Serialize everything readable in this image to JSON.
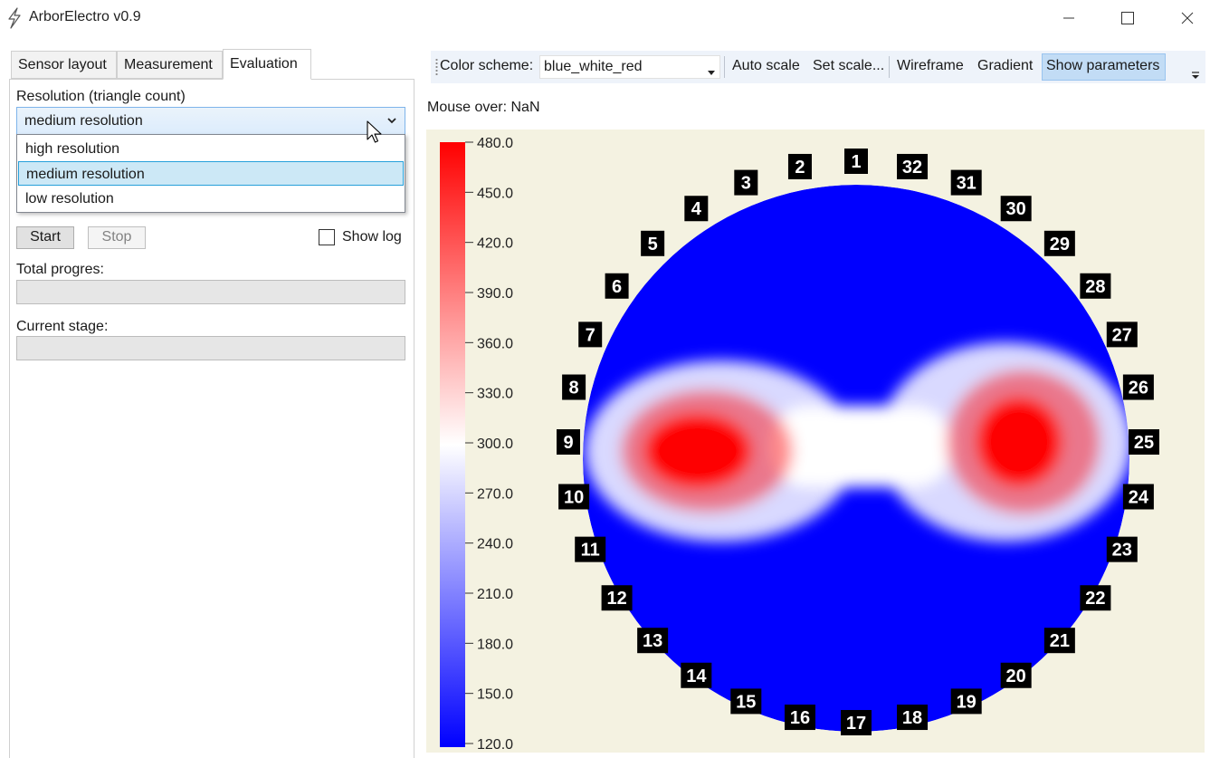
{
  "window": {
    "title": "ArborElectro v0.9",
    "icon": "lightning-icon",
    "controls": [
      "minimize-icon",
      "maximize-icon",
      "close-icon"
    ]
  },
  "tabs": [
    {
      "label": "Sensor layout",
      "active": false
    },
    {
      "label": "Measurement",
      "active": false
    },
    {
      "label": "Evaluation",
      "active": true
    }
  ],
  "evaluation": {
    "resolution_label": "Resolution (triangle count)",
    "resolution_value": "medium resolution",
    "resolution_options": [
      {
        "label": "high resolution",
        "selected": false
      },
      {
        "label": "medium resolution",
        "selected": true
      },
      {
        "label": "low resolution",
        "selected": false
      }
    ],
    "start_label": "Start",
    "stop_label": "Stop",
    "show_log_label": "Show log",
    "show_log_checked": false,
    "total_progress_label": "Total progres:",
    "total_progress_value": 0,
    "current_stage_label": "Current stage:",
    "current_stage_value": 0
  },
  "toolbar": {
    "color_scheme_label": "Color scheme:",
    "color_scheme_value": "blue_white_red",
    "auto_scale_label": "Auto scale",
    "set_scale_label": "Set scale...",
    "wireframe_label": "Wireframe",
    "gradient_label": "Gradient",
    "show_parameters_label": "Show parameters",
    "show_parameters_active": true
  },
  "mouse_over": "Mouse over: NaN",
  "colors": {
    "scale_low": "#0000ff",
    "scale_mid": "#ffffff",
    "scale_high": "#ff0000",
    "plot_background": "#f4f2e1",
    "marker_background": "#000000",
    "marker_text": "#ffffff",
    "toolbar_active": "#c2dcf5"
  },
  "chart_data": {
    "type": "heatmap",
    "colorbar": {
      "min": 120.0,
      "max": 480.0,
      "ticks": [
        "480.0",
        "450.0",
        "420.0",
        "390.0",
        "360.0",
        "330.0",
        "300.0",
        "270.0",
        "240.0",
        "210.0",
        "180.0",
        "150.0",
        "120.0"
      ]
    },
    "sensor_labels": [
      "1",
      "2",
      "3",
      "4",
      "5",
      "6",
      "7",
      "8",
      "9",
      "10",
      "11",
      "12",
      "13",
      "14",
      "15",
      "16",
      "17",
      "18",
      "19",
      "20",
      "21",
      "22",
      "23",
      "24",
      "25",
      "26",
      "27",
      "28",
      "29",
      "30",
      "31",
      "32"
    ]
  }
}
